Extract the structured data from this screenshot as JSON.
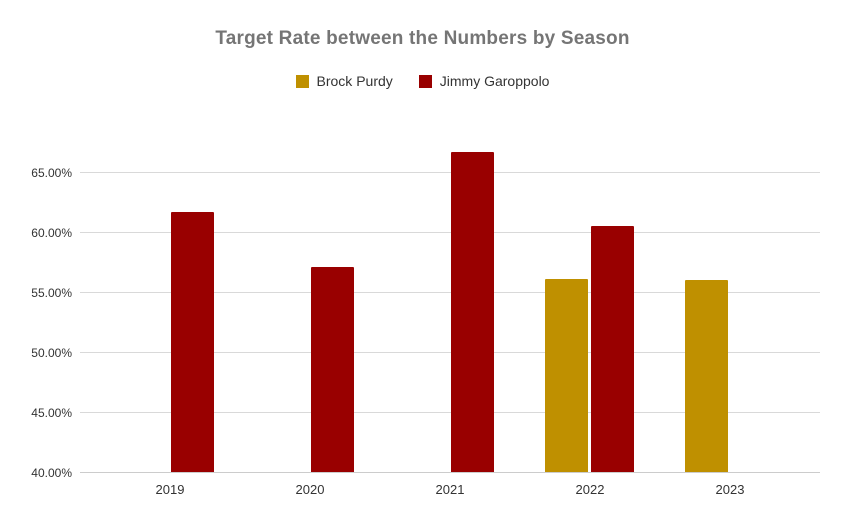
{
  "title": "Target Rate between the Numbers by Season",
  "colors": {
    "background": "#ffffff",
    "title_text": "#757575",
    "axis_text": "#333333",
    "gridline": "#d9d9d9",
    "baseline": "#cccccc",
    "brock_purdy_gold": "#bf9000",
    "jimmy_garoppolo_red": "#990000"
  },
  "legend": {
    "position": "top",
    "items": [
      {
        "label": "Brock Purdy",
        "color": "#bf9000"
      },
      {
        "label": "Jimmy Garoppolo",
        "color": "#990000"
      }
    ]
  },
  "chart_data": {
    "type": "bar",
    "title": "Target Rate between the Numbers by Season",
    "xlabel": "",
    "ylabel": "",
    "categories": [
      "2019",
      "2020",
      "2021",
      "2022",
      "2023"
    ],
    "series": [
      {
        "name": "Brock Purdy",
        "color": "#bf9000",
        "values": [
          null,
          null,
          null,
          56.1,
          56.0
        ]
      },
      {
        "name": "Jimmy Garoppolo",
        "color": "#990000",
        "values": [
          61.7,
          57.1,
          66.7,
          60.5,
          null
        ]
      }
    ],
    "value_format": "percent",
    "grid": true,
    "legend_position": "top",
    "y_axis": {
      "min": 40,
      "max": 67.1,
      "tick_interval": 5,
      "ticks": [
        {
          "value": 40,
          "label": "40.00%"
        },
        {
          "value": 45,
          "label": "45.00%"
        },
        {
          "value": 50,
          "label": "50.00%"
        },
        {
          "value": 55,
          "label": "55.00%"
        },
        {
          "value": 60,
          "label": "60.00%"
        },
        {
          "value": 65,
          "label": "65.00%"
        }
      ]
    }
  }
}
